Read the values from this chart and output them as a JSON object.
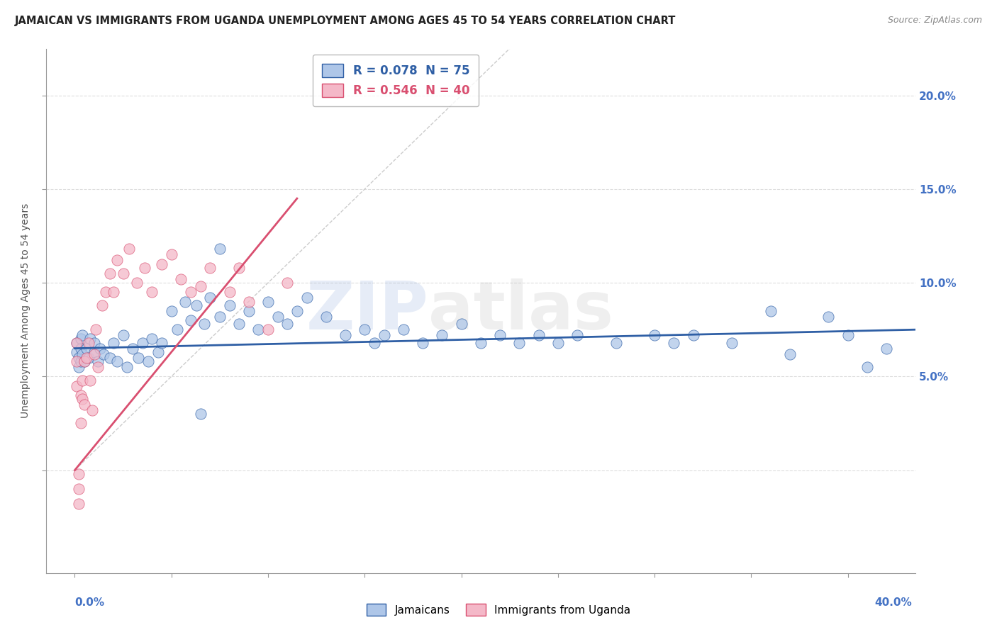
{
  "title": "JAMAICAN VS IMMIGRANTS FROM UGANDA UNEMPLOYMENT AMONG AGES 45 TO 54 YEARS CORRELATION CHART",
  "source": "Source: ZipAtlas.com",
  "ylabel": "Unemployment Among Ages 45 to 54 years",
  "legend_1_label": "R = 0.078  N = 75",
  "legend_2_label": "R = 0.546  N = 40",
  "scatter_color_jamaican": "#aec6e8",
  "scatter_color_uganda": "#f4b8c8",
  "line_color_jamaican": "#2f5fa5",
  "line_color_uganda": "#d94f70",
  "ref_line_color": "#cccccc",
  "grid_color": "#dddddd",
  "bg_color": "#ffffff",
  "title_fontsize": 10.5,
  "source_fontsize": 9,
  "right_tick_color": "#4472c4",
  "ylim_min": -0.055,
  "ylim_max": 0.225,
  "xlim_min": -0.015,
  "xlim_max": 0.435,
  "ytick_values": [
    0.0,
    0.05,
    0.1,
    0.15,
    0.2
  ],
  "ytick_labels_right": [
    "",
    "5.0%",
    "10.0%",
    "15.0%",
    "20.0%"
  ],
  "xtick_values": [
    0.0,
    0.05,
    0.1,
    0.15,
    0.2,
    0.25,
    0.3,
    0.35,
    0.4
  ],
  "jamaican_x": [
    0.001,
    0.001,
    0.002,
    0.002,
    0.003,
    0.003,
    0.003,
    0.004,
    0.004,
    0.005,
    0.006,
    0.007,
    0.008,
    0.01,
    0.01,
    0.012,
    0.013,
    0.015,
    0.018,
    0.02,
    0.022,
    0.025,
    0.027,
    0.03,
    0.033,
    0.035,
    0.038,
    0.04,
    0.043,
    0.045,
    0.05,
    0.053,
    0.057,
    0.06,
    0.063,
    0.067,
    0.07,
    0.075,
    0.08,
    0.085,
    0.09,
    0.095,
    0.1,
    0.105,
    0.11,
    0.115,
    0.12,
    0.13,
    0.14,
    0.15,
    0.155,
    0.16,
    0.17,
    0.18,
    0.19,
    0.2,
    0.21,
    0.22,
    0.23,
    0.24,
    0.25,
    0.26,
    0.28,
    0.3,
    0.31,
    0.32,
    0.34,
    0.36,
    0.37,
    0.39,
    0.4,
    0.41,
    0.42,
    0.065,
    0.075
  ],
  "jamaican_y": [
    0.068,
    0.063,
    0.06,
    0.055,
    0.07,
    0.065,
    0.058,
    0.062,
    0.072,
    0.058,
    0.065,
    0.06,
    0.07,
    0.063,
    0.068,
    0.058,
    0.065,
    0.062,
    0.06,
    0.068,
    0.058,
    0.072,
    0.055,
    0.065,
    0.06,
    0.068,
    0.058,
    0.07,
    0.063,
    0.068,
    0.085,
    0.075,
    0.09,
    0.08,
    0.088,
    0.078,
    0.092,
    0.082,
    0.088,
    0.078,
    0.085,
    0.075,
    0.09,
    0.082,
    0.078,
    0.085,
    0.092,
    0.082,
    0.072,
    0.075,
    0.068,
    0.072,
    0.075,
    0.068,
    0.072,
    0.078,
    0.068,
    0.072,
    0.068,
    0.072,
    0.068,
    0.072,
    0.068,
    0.072,
    0.068,
    0.072,
    0.068,
    0.085,
    0.062,
    0.082,
    0.072,
    0.055,
    0.065,
    0.03,
    0.118
  ],
  "uganda_x": [
    0.001,
    0.001,
    0.001,
    0.002,
    0.002,
    0.002,
    0.003,
    0.003,
    0.004,
    0.004,
    0.005,
    0.005,
    0.006,
    0.007,
    0.008,
    0.009,
    0.01,
    0.011,
    0.012,
    0.014,
    0.016,
    0.018,
    0.02,
    0.022,
    0.025,
    0.028,
    0.032,
    0.036,
    0.04,
    0.045,
    0.05,
    0.055,
    0.06,
    0.065,
    0.07,
    0.08,
    0.085,
    0.09,
    0.1,
    0.11
  ],
  "uganda_y": [
    0.068,
    0.058,
    0.045,
    -0.002,
    -0.01,
    -0.018,
    0.04,
    0.025,
    0.048,
    0.038,
    0.058,
    0.035,
    0.06,
    0.068,
    0.048,
    0.032,
    0.062,
    0.075,
    0.055,
    0.088,
    0.095,
    0.105,
    0.095,
    0.112,
    0.105,
    0.118,
    0.1,
    0.108,
    0.095,
    0.11,
    0.115,
    0.102,
    0.095,
    0.098,
    0.108,
    0.095,
    0.108,
    0.09,
    0.075,
    0.1
  ],
  "jamaican_trend_x": [
    0.0,
    0.435
  ],
  "jamaican_trend_y": [
    0.065,
    0.075
  ],
  "uganda_trend_x0": 0.0,
  "uganda_trend_x1": 0.115,
  "uganda_trend_y0": 0.0,
  "uganda_trend_y1": 0.145,
  "ref_line_x": [
    0.0,
    0.435
  ],
  "ref_line_y": [
    0.0,
    0.435
  ]
}
